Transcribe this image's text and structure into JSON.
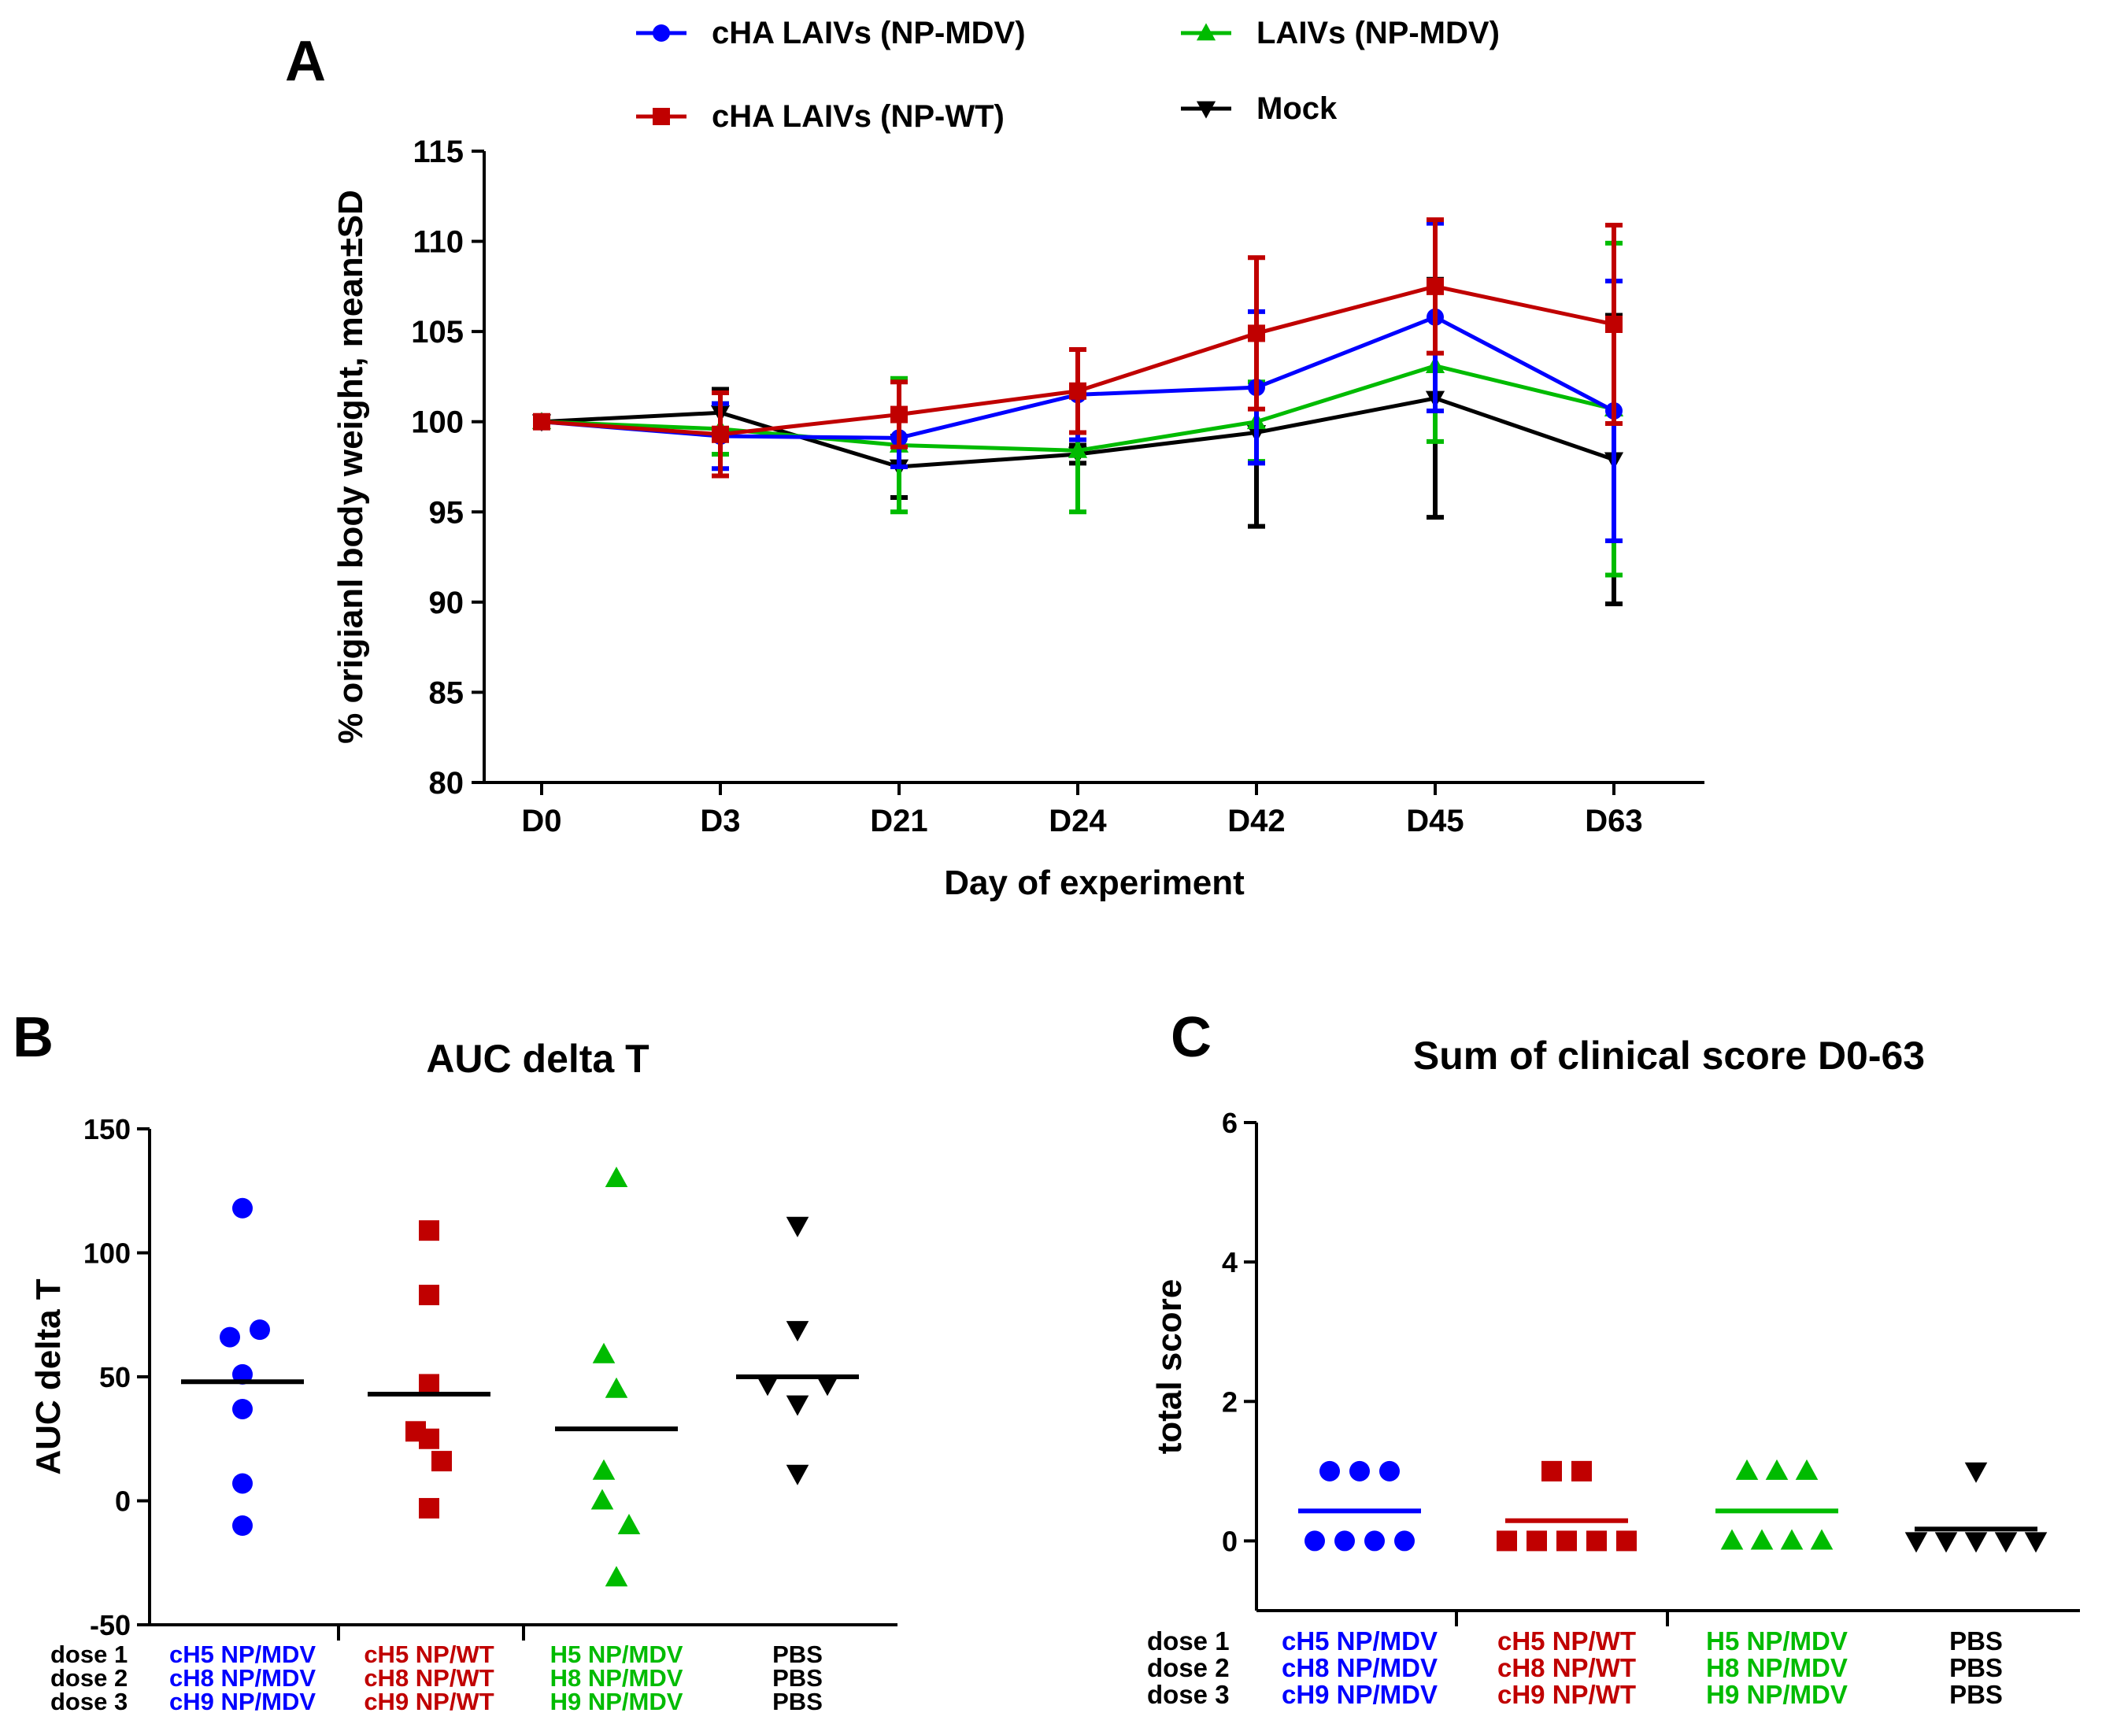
{
  "panel_labels": {
    "a": "A",
    "b": "B",
    "c": "C"
  },
  "colors": {
    "blue": "#0000ff",
    "red": "#c00000",
    "green": "#00bb00",
    "black": "#000000"
  },
  "chart_data": [
    {
      "panel": "A",
      "type": "line",
      "title": "",
      "xlabel": "Day of experiment",
      "ylabel": "% origianl body weight, mean±SD",
      "categories": [
        "D0",
        "D3",
        "D21",
        "D24",
        "D42",
        "D45",
        "D63"
      ],
      "ylim": [
        80,
        115
      ],
      "yticks": [
        80,
        85,
        90,
        95,
        100,
        105,
        110,
        115
      ],
      "series": [
        {
          "name": "cHA LAIVs (NP-MDV)",
          "color": "#0000ff",
          "marker": "circle",
          "values": [
            100,
            99.2,
            99.1,
            101.5,
            101.9,
            105.8,
            100.6
          ],
          "sd": [
            0,
            1.8,
            1.6,
            2.5,
            4.2,
            5.2,
            7.2
          ]
        },
        {
          "name": "cHA LAIVs (NP-WT)",
          "color": "#c00000",
          "marker": "square",
          "values": [
            100,
            99.3,
            100.4,
            101.7,
            104.9,
            107.5,
            105.4
          ],
          "sd": [
            0,
            2.3,
            1.8,
            2.3,
            4.2,
            3.7,
            5.5
          ]
        },
        {
          "name": "LAIVs (NP-MDV)",
          "color": "#00bb00",
          "marker": "triangle-up",
          "values": [
            100,
            99.6,
            98.7,
            98.4,
            100.0,
            103.1,
            100.7
          ],
          "sd": [
            0,
            1.4,
            3.7,
            3.4,
            2.2,
            4.2,
            9.2
          ]
        },
        {
          "name": "Mock",
          "color": "#000000",
          "marker": "triangle-down",
          "values": [
            100,
            100.5,
            97.5,
            98.2,
            99.4,
            101.3,
            97.9
          ],
          "sd": [
            0,
            1.3,
            1.7,
            0.5,
            5.2,
            6.6,
            8.0
          ]
        }
      ]
    },
    {
      "panel": "B",
      "type": "scatter",
      "title": "AUC delta T",
      "ylabel": "AUC delta T",
      "ylim": [
        -50,
        150
      ],
      "yticks": [
        -50,
        0,
        50,
        100,
        150
      ],
      "groups": [
        {
          "color": "#0000ff",
          "marker": "circle",
          "points": [
            118,
            69,
            66,
            51,
            37,
            7,
            -10
          ],
          "mean": 48
        },
        {
          "color": "#c00000",
          "marker": "square",
          "points": [
            109,
            83,
            47,
            28,
            25,
            16,
            -3
          ],
          "mean": 43
        },
        {
          "color": "#00bb00",
          "marker": "triangle-up",
          "points": [
            130,
            59,
            45,
            12,
            0,
            -10,
            -31
          ],
          "mean": 29
        },
        {
          "color": "#000000",
          "marker": "triangle-down",
          "points": [
            111,
            69,
            47,
            47,
            39,
            11
          ],
          "mean": 50
        }
      ]
    },
    {
      "panel": "C",
      "type": "scatter",
      "title": "Sum of clinical score D0-63",
      "ylabel": "total score",
      "ylim": [
        -1,
        6
      ],
      "yticks": [
        0,
        2,
        4,
        6
      ],
      "groups": [
        {
          "color": "#0000ff",
          "marker": "circle",
          "points": [
            1,
            1,
            1,
            0,
            0,
            0,
            0
          ],
          "mean": 0.43
        },
        {
          "color": "#c00000",
          "marker": "square",
          "points": [
            1,
            1,
            0,
            0,
            0,
            0,
            0
          ],
          "mean": 0.29
        },
        {
          "color": "#00bb00",
          "marker": "triangle-up",
          "points": [
            1,
            1,
            1,
            0,
            0,
            0,
            0
          ],
          "mean": 0.43
        },
        {
          "color": "#000000",
          "marker": "triangle-down",
          "points": [
            1,
            0,
            0,
            0,
            0,
            0
          ],
          "mean": 0.17
        }
      ]
    }
  ],
  "dose_rows": [
    "dose 1",
    "dose 2",
    "dose 3"
  ],
  "dose_groups": [
    {
      "color": "#0000ff",
      "labels": [
        "cH5 NP/MDV",
        "cH8 NP/MDV",
        "cH9 NP/MDV"
      ]
    },
    {
      "color": "#c00000",
      "labels": [
        "cH5 NP/WT",
        "cH8 NP/WT",
        "cH9 NP/WT"
      ]
    },
    {
      "color": "#00bb00",
      "labels": [
        "H5 NP/MDV",
        "H8 NP/MDV",
        "H9 NP/MDV"
      ]
    },
    {
      "color": "#000000",
      "labels": [
        "PBS",
        "PBS",
        "PBS"
      ]
    }
  ]
}
